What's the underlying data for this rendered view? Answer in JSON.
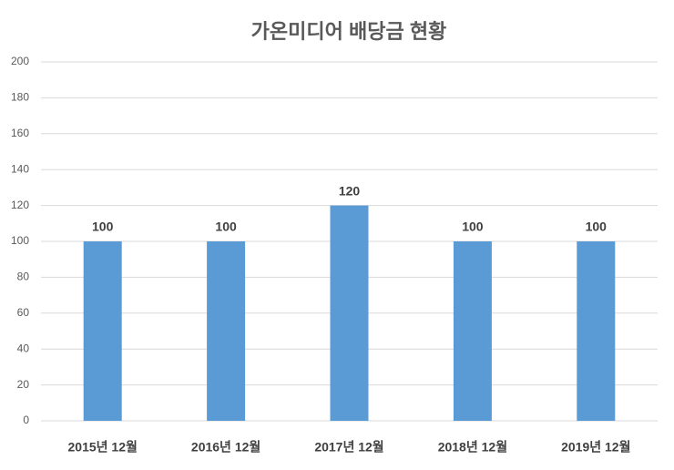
{
  "chart_data": {
    "type": "bar",
    "title": "가온미디어 배당금 현황",
    "categories": [
      "2015년 12월",
      "2016년 12월",
      "2017년 12월",
      "2018년 12월",
      "2019년 12월"
    ],
    "values": [
      100,
      100,
      120,
      100,
      100
    ],
    "color": "#5b9bd5",
    "ylim": [
      0,
      200
    ],
    "yticks": [
      0,
      20,
      40,
      60,
      80,
      100,
      120,
      140,
      160,
      180,
      200
    ],
    "grid": true
  }
}
